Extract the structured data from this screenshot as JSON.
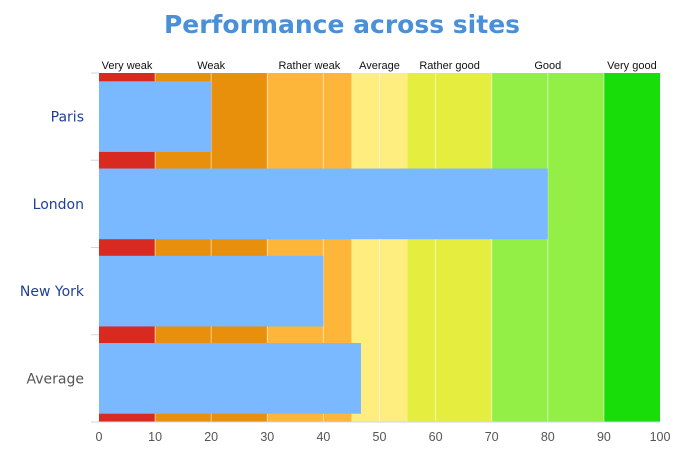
{
  "chart_data": {
    "type": "bar",
    "orientation": "horizontal",
    "title": "Performance across sites",
    "categories": [
      "Paris",
      "London",
      "New York",
      "Average"
    ],
    "values": [
      20,
      80,
      40,
      46.7
    ],
    "xlim": [
      0,
      100
    ],
    "x_ticks": [
      "0",
      "10",
      "20",
      "30",
      "40",
      "50",
      "60",
      "70",
      "80",
      "90",
      "100"
    ],
    "bands": [
      {
        "label": "Very weak",
        "from": 0,
        "to": 10,
        "color": "#d92a22"
      },
      {
        "label": "Weak",
        "from": 10,
        "to": 30,
        "color": "#e8900c"
      },
      {
        "label": "Rather weak",
        "from": 30,
        "to": 45,
        "color": "#fdb639"
      },
      {
        "label": "Average",
        "from": 45,
        "to": 55,
        "color": "#fdee7f"
      },
      {
        "label": "Rather good",
        "from": 55,
        "to": 70,
        "color": "#e5ed3f"
      },
      {
        "label": "Good",
        "from": 70,
        "to": 90,
        "color": "#93ee45"
      },
      {
        "label": "Very good",
        "from": 90,
        "to": 100,
        "color": "#19dd08"
      }
    ],
    "colors": {
      "bar": "#7ab8ff",
      "title": "#4a90d9",
      "category_label": "#1f3f99",
      "average_label": "#555555"
    },
    "grid": true
  }
}
